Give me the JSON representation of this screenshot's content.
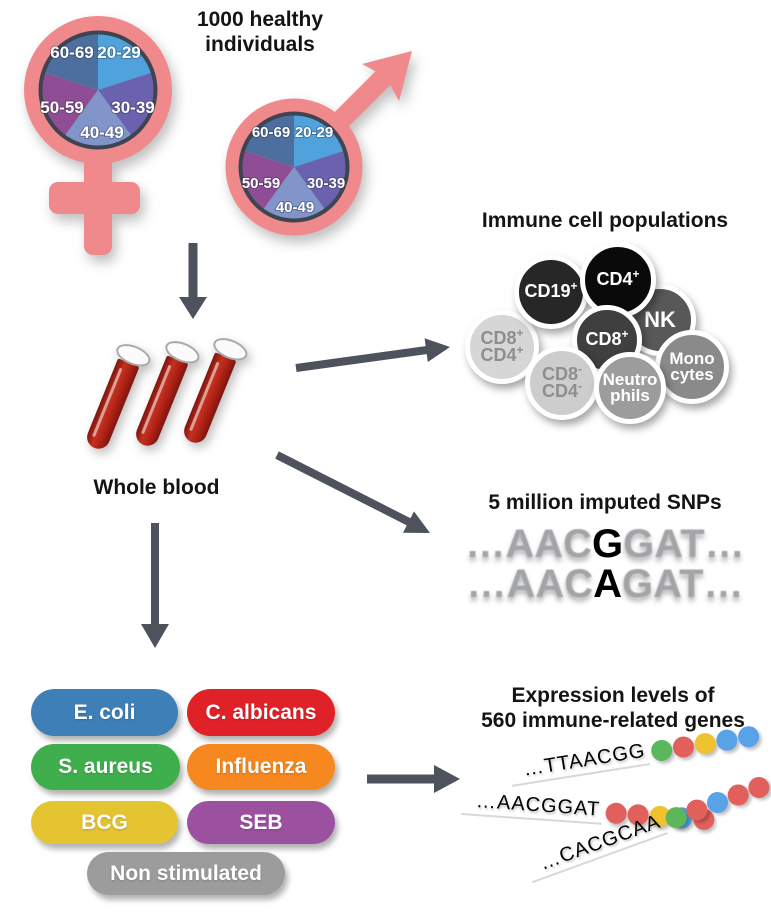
{
  "header": {
    "title": "1000 healthy individuals"
  },
  "demographics": {
    "symbol_color": "#F0898C",
    "pie_border_color": "#3E4450",
    "age_groups": [
      {
        "label": "20-29",
        "color": "#4FA2DC"
      },
      {
        "label": "30-39",
        "color": "#6A62AE"
      },
      {
        "label": "40-49",
        "color": "#8195CA"
      },
      {
        "label": "50-59",
        "color": "#8F4D96"
      },
      {
        "label": "60-69",
        "color": "#4C6F9F"
      }
    ]
  },
  "blood": {
    "label": "Whole blood",
    "tube_color": "#A81F14"
  },
  "immune_cells": {
    "title": "Immune cell populations",
    "cells": [
      {
        "id": "cd8pos-cd4pos",
        "line1": "CD8",
        "line1_sup": "+",
        "line2": "CD4",
        "line2_sup": "+",
        "color": "#D6D6D6"
      },
      {
        "id": "cd19pos",
        "line1": "CD19",
        "line1_sup": "+",
        "color": "#272727"
      },
      {
        "id": "nk",
        "line1": "NK",
        "color": "#585858"
      },
      {
        "id": "cd4pos",
        "line1": "CD4",
        "line1_sup": "+",
        "color": "#0A0A0A"
      },
      {
        "id": "cd8pos",
        "line1": "CD8",
        "line1_sup": "+",
        "color": "#3F3F3F"
      },
      {
        "id": "cd8neg-cd4neg",
        "line1": "CD8",
        "line1_sup": "-",
        "line2": "CD4",
        "line2_sup": "-",
        "color": "#CDCDCD"
      },
      {
        "id": "monocytes",
        "line1": "Mono",
        "line2": "cytes",
        "color": "#8A8A8A"
      },
      {
        "id": "neutrophils",
        "line1": "Neutro",
        "line2": "phils",
        "color": "#9C9C9C"
      }
    ]
  },
  "snps": {
    "title": "5 million imputed SNPs",
    "sequences": [
      {
        "pre": "…AAC",
        "allele": "G",
        "post": "GAT…"
      },
      {
        "pre": "…AAC",
        "allele": "A",
        "post": "GAT…"
      }
    ]
  },
  "stimuli": {
    "items": [
      {
        "label": "E. coli",
        "color": "#3E7FB7"
      },
      {
        "label": "C. albicans",
        "color": "#E02127"
      },
      {
        "label": "S. aureus",
        "color": "#3FAF4D"
      },
      {
        "label": "Influenza",
        "color": "#F6881F"
      },
      {
        "label": "BCG",
        "color": "#E5C431"
      },
      {
        "label": "SEB",
        "color": "#9B51A0"
      },
      {
        "label": "Non stimulated",
        "color": "#9C9C9C"
      }
    ]
  },
  "expression": {
    "title_lines": [
      "Expression levels of",
      "560 immune-related genes"
    ],
    "dot_colors": {
      "green": "#5BB75B",
      "red": "#E2605C",
      "yellow": "#EFC32F",
      "blue": "#58A2E8"
    },
    "strands": [
      {
        "sequence": "…TTAACGG",
        "dots": [
          "green",
          "red",
          "yellow",
          "blue",
          "blue"
        ]
      },
      {
        "sequence": "…AACGGAT",
        "dots": [
          "red",
          "red",
          "yellow",
          "blue",
          "red"
        ]
      },
      {
        "sequence": "…CACGCAA",
        "dots": [
          "green",
          "red",
          "blue",
          "red",
          "red"
        ]
      }
    ]
  },
  "arrow_color": "#4D525C"
}
